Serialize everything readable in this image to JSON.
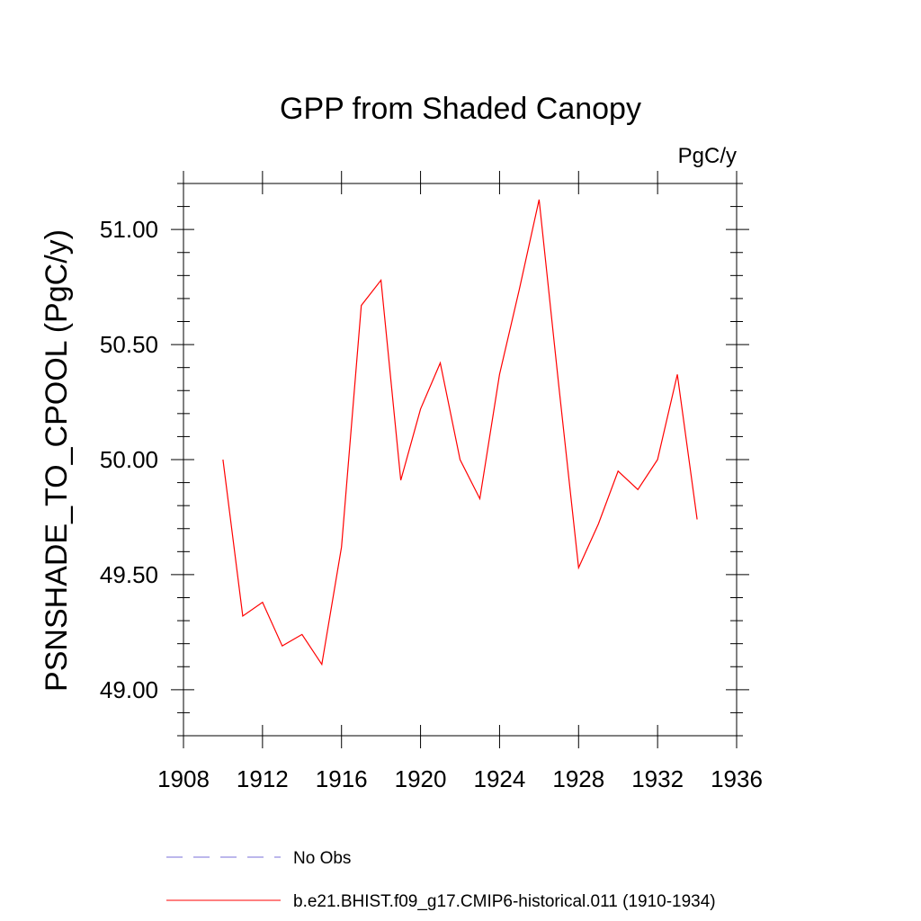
{
  "chart_data": {
    "type": "line",
    "title": "GPP from Shaded Canopy",
    "units_label": "PgC/y",
    "xlabel": "",
    "ylabel": "PSNSHADE_TO_CPOOL  (PgC/y)",
    "xlim": [
      1908,
      1936
    ],
    "ylim": [
      48.8,
      51.2
    ],
    "xticks": [
      1908,
      1912,
      1916,
      1920,
      1924,
      1928,
      1932,
      1936
    ],
    "xtick_labels": [
      "1908",
      "1912",
      "1916",
      "1920",
      "1924",
      "1928",
      "1932",
      "1936"
    ],
    "yticks": [
      49.0,
      49.5,
      50.0,
      50.5,
      51.0
    ],
    "ytick_labels": [
      "49.00",
      "49.50",
      "50.00",
      "50.50",
      "51.00"
    ],
    "grid": false,
    "legend_position": "bottom",
    "series": [
      {
        "name": "b.e21.BHIST.f09_g17.CMIP6-historical.011 (1910-1934)",
        "color": "#ff0000",
        "style": "solid",
        "x": [
          1910,
          1911,
          1912,
          1913,
          1914,
          1915,
          1916,
          1917,
          1918,
          1919,
          1920,
          1921,
          1922,
          1923,
          1924,
          1925,
          1926,
          1927,
          1928,
          1929,
          1930,
          1931,
          1932,
          1933,
          1934
        ],
        "values": [
          50.0,
          49.32,
          49.38,
          49.19,
          49.24,
          49.11,
          49.62,
          50.67,
          50.78,
          49.91,
          50.22,
          50.42,
          50.0,
          49.83,
          50.37,
          50.74,
          51.13,
          50.32,
          49.53,
          49.72,
          49.95,
          49.87,
          50.0,
          50.37,
          49.74
        ]
      }
    ],
    "legend": [
      {
        "label": "No Obs",
        "color": "#7a6fd8",
        "style": "dashed"
      },
      {
        "label": "b.e21.BHIST.f09_g17.CMIP6-historical.011 (1910-1934)",
        "color": "#ff0000",
        "style": "solid"
      }
    ]
  }
}
